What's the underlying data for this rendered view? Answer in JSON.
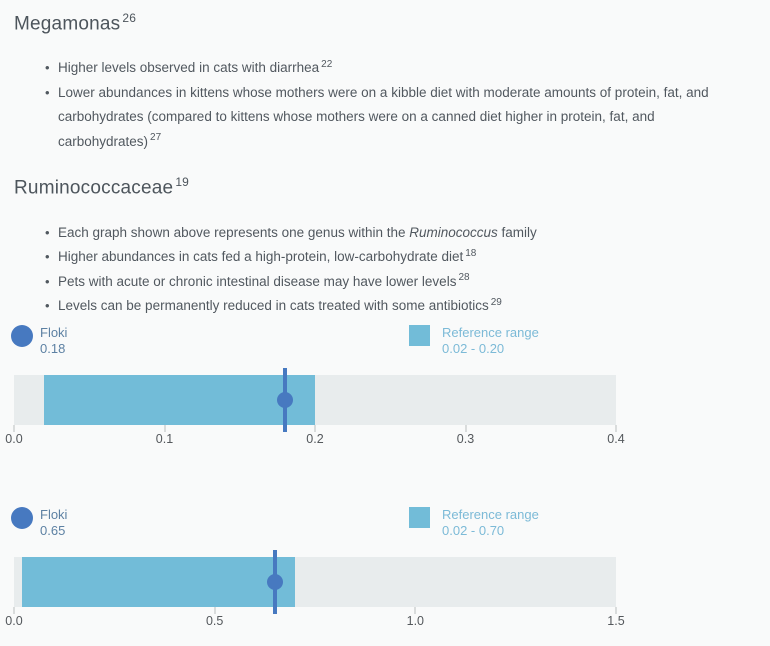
{
  "colors": {
    "background": "#f9fafa",
    "heading_text": "#4d555c",
    "body_text": "#51585f",
    "axis_text": "#54585c",
    "axis_tick": "#b9bdbf",
    "track": "#e8eced",
    "reference_range": "#72bcd8",
    "pet_marker": "#4779c0",
    "pet_legend_text": "#5d81a3",
    "reference_legend_text": "#7cbad7"
  },
  "sections": [
    {
      "heading": "Megamonas",
      "heading_ref": "26",
      "bullets": [
        {
          "parts": [
            {
              "t": "text",
              "v": "Higher levels observed in cats with diarrhea"
            },
            {
              "t": "sup",
              "v": "22"
            }
          ]
        },
        {
          "parts": [
            {
              "t": "text",
              "v": "Lower abundances in kittens whose mothers were on a kibble diet with moderate amounts of protein, fat, and carbohydrates (compared to kittens whose mothers were on a canned diet higher in protein, fat, and carbohydrates)"
            },
            {
              "t": "sup",
              "v": "27"
            }
          ]
        }
      ]
    },
    {
      "heading": "Ruminococcaceae",
      "heading_ref": "19",
      "bullets": [
        {
          "parts": [
            {
              "t": "text",
              "v": "Each graph shown above represents one genus within the "
            },
            {
              "t": "i",
              "v": "Ruminococcus"
            },
            {
              "t": "text",
              "v": " family"
            }
          ]
        },
        {
          "parts": [
            {
              "t": "text",
              "v": "Higher abundances in cats fed a high-protein, low-carbohydrate diet"
            },
            {
              "t": "sup",
              "v": "18"
            }
          ]
        },
        {
          "parts": [
            {
              "t": "text",
              "v": "Pets with acute or chronic intestinal disease may have lower levels"
            },
            {
              "t": "sup",
              "v": "28"
            }
          ]
        },
        {
          "parts": [
            {
              "t": "text",
              "v": "Levels can be permanently reduced in cats treated with some antibiotics"
            },
            {
              "t": "sup",
              "v": "29"
            }
          ]
        }
      ]
    }
  ],
  "chart_data": [
    {
      "type": "range-bar",
      "series_label": "Floki",
      "value": 0.18,
      "value_display": "0.18",
      "reference_range": {
        "label": "Reference range",
        "min": 0.02,
        "max": 0.2,
        "display": "0.02 - 0.20"
      },
      "axis": {
        "min": 0,
        "max": 0.4,
        "ticks": [
          0,
          0.1,
          0.2,
          0.3,
          0.4
        ],
        "tick_labels": [
          "0.0",
          "0.1",
          "0.2",
          "0.3",
          "0.4"
        ]
      },
      "legend_position": "top",
      "grid": false
    },
    {
      "type": "range-bar",
      "series_label": "Floki",
      "value": 0.65,
      "value_display": "0.65",
      "reference_range": {
        "label": "Reference range",
        "min": 0.02,
        "max": 0.7,
        "display": "0.02 - 0.70"
      },
      "axis": {
        "min": 0,
        "max": 1.5,
        "ticks": [
          0,
          0.5,
          1.0,
          1.5
        ],
        "tick_labels": [
          "0.0",
          "0.5",
          "1.0",
          "1.5"
        ]
      },
      "legend_position": "top",
      "grid": false
    }
  ]
}
